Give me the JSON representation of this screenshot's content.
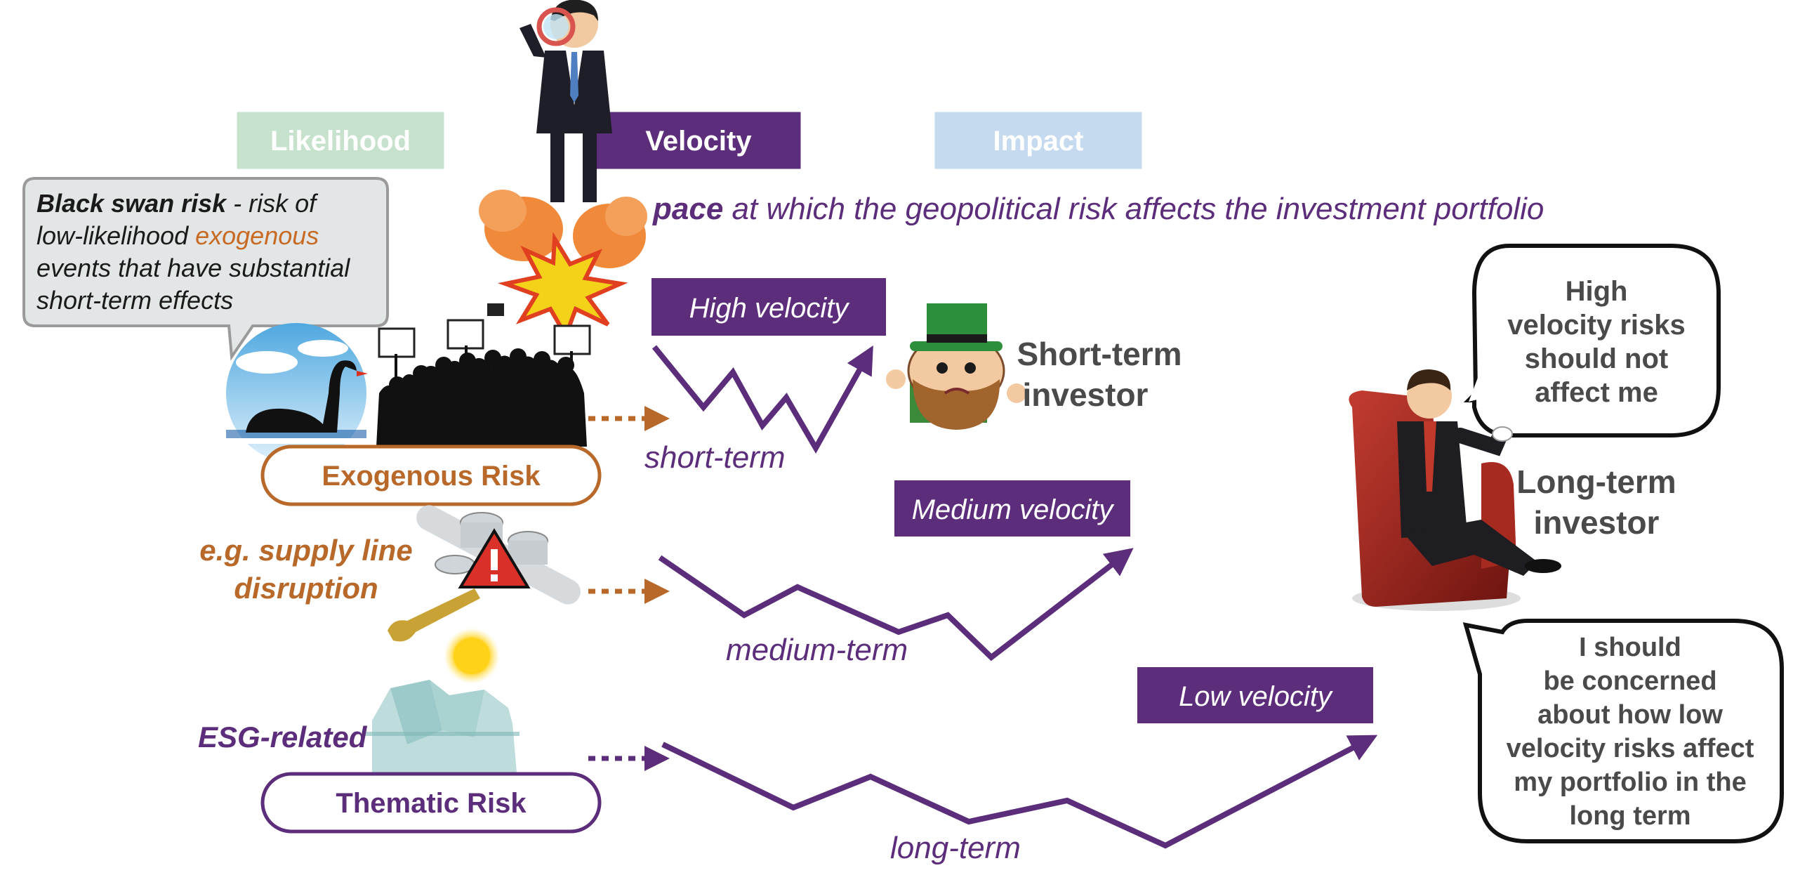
{
  "header": {
    "likelihood_label": "Likelihood",
    "velocity_label": "Velocity",
    "impact_label": "Impact",
    "definition_bold": "pace",
    "definition_rest": " at which the geopolitical risk affects the investment portfolio"
  },
  "callout": {
    "bold": "Black swan risk",
    "line1_rest": " - risk of",
    "line2_pre": "low-likelihood ",
    "line2_accent": "exogenous",
    "line3": "events that have substantial",
    "line4": "short-term effects"
  },
  "risks": {
    "exogenous_label": "Exogenous Risk",
    "supply_line1": "e.g. supply line",
    "supply_line2": "disruption",
    "esg_label": "ESG-related",
    "thematic_label": "Thematic Risk"
  },
  "velocities": {
    "high_label": "High velocity",
    "medium_label": "Medium velocity",
    "low_label": "Low velocity",
    "short_term": "short-term",
    "medium_term": "medium-term",
    "long_term": "long-term"
  },
  "investors": {
    "short_term_line1": "Short-term",
    "short_term_line2": "investor",
    "long_term_line1": "Long-term",
    "long_term_line2": "investor",
    "bubble_top": [
      "High",
      "velocity risks",
      "should not",
      "affect me"
    ],
    "bubble_bottom": [
      "I should",
      "be concerned",
      "about how low",
      "velocity risks affect",
      "my portfolio in the",
      "long term"
    ]
  },
  "colors": {
    "purple": "#5b2d7a",
    "orange": "#b8692a",
    "likelihood_green": "#c6e2cd",
    "impact_blue": "#c5d9ef",
    "dark_text": "#4a4a4a"
  }
}
